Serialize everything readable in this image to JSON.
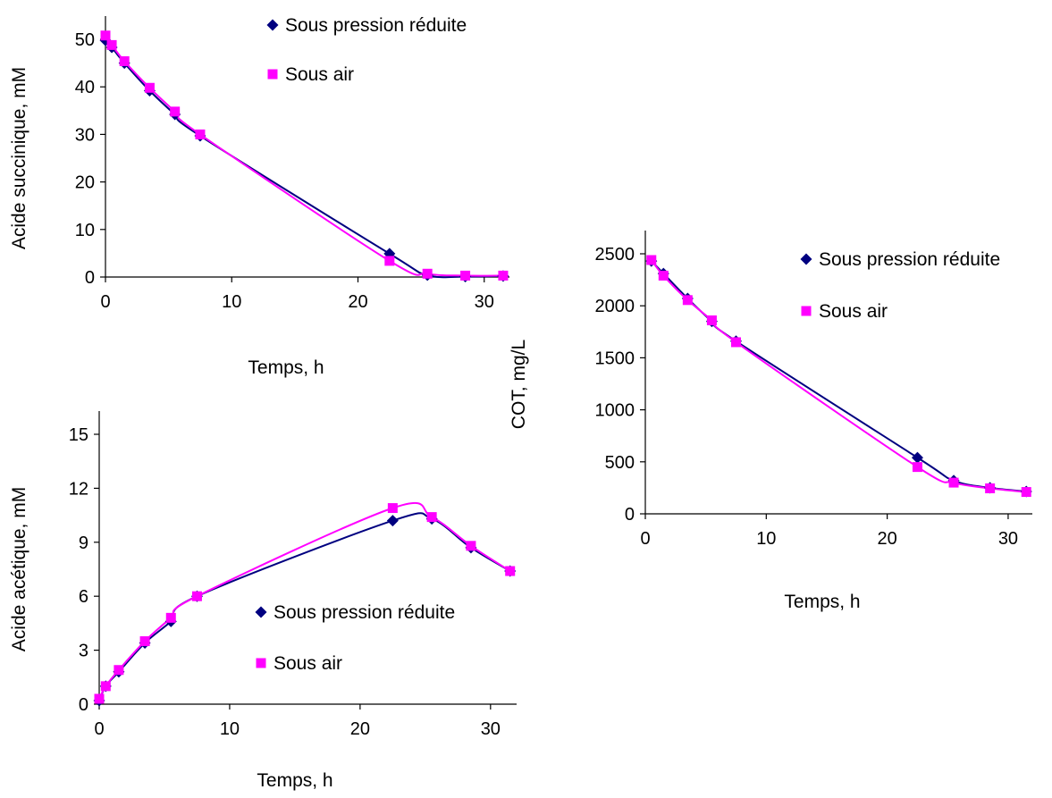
{
  "colors": {
    "series_a": "#000080",
    "series_b": "#FF00FF",
    "axis": "#000000"
  },
  "chart_data": [
    {
      "id": "chart-succinique",
      "type": "scatter",
      "xlabel": "Temps, h",
      "ylabel": "Acide succinique, mM",
      "xlim": [
        0,
        32
      ],
      "ylim": [
        0,
        50
      ],
      "xticks": [
        "0",
        "10",
        "20",
        "30"
      ],
      "yticks": [
        "0",
        "10",
        "20",
        "30",
        "40",
        "50"
      ],
      "legend": "top-right",
      "trendlines": true,
      "series": [
        {
          "name": "Sous pression réduite",
          "marker": "diamond",
          "x": [
            0,
            0.5,
            1.5,
            3.5,
            5.5,
            7.5,
            22.5,
            25.5,
            28.5,
            31.5
          ],
          "y": [
            49.8,
            48.3,
            45,
            39.2,
            34.2,
            29.7,
            4.9,
            0.4,
            0.1,
            0.2
          ]
        },
        {
          "name": "Sous air",
          "marker": "square",
          "x": [
            0,
            0.5,
            1.5,
            3.5,
            5.5,
            7.5,
            22.5,
            25.5,
            28.5,
            31.5
          ],
          "y": [
            50.8,
            48.8,
            45.4,
            39.8,
            34.8,
            30,
            3.4,
            0.7,
            0.3,
            0.3
          ]
        }
      ]
    },
    {
      "id": "chart-acetique",
      "type": "scatter",
      "xlabel": "Temps, h",
      "ylabel": "Acide acétique, mM",
      "xlim": [
        0,
        32
      ],
      "ylim": [
        0,
        15
      ],
      "xticks": [
        "0",
        "10",
        "20",
        "30"
      ],
      "yticks": [
        "0",
        "3",
        "6",
        "9",
        "12",
        "15"
      ],
      "legend": "center-right",
      "trendlines": true,
      "series": [
        {
          "name": "Sous pression réduite",
          "marker": "diamond",
          "x": [
            0,
            0.5,
            1.5,
            3.5,
            5.5,
            7.5,
            22.5,
            25.5,
            28.5,
            31.5
          ],
          "y": [
            0.2,
            1,
            1.8,
            3.4,
            4.6,
            6,
            10.2,
            10.3,
            8.7,
            7.4
          ]
        },
        {
          "name": "Sous air",
          "marker": "square",
          "x": [
            0,
            0.5,
            1.5,
            3.5,
            5.5,
            7.5,
            22.5,
            25.5,
            28.5,
            31.5
          ],
          "y": [
            0.3,
            1,
            1.9,
            3.5,
            4.8,
            6,
            10.9,
            10.4,
            8.8,
            7.4
          ]
        }
      ]
    },
    {
      "id": "chart-cot",
      "type": "scatter",
      "xlabel": "Temps, h",
      "ylabel": "COT, mg/L",
      "xlim": [
        0,
        32
      ],
      "ylim": [
        0,
        2500
      ],
      "xticks": [
        "0",
        "10",
        "20",
        "30"
      ],
      "yticks": [
        "0",
        "500",
        "1000",
        "1500",
        "2000",
        "2500"
      ],
      "legend": "top-right",
      "trendlines": true,
      "series": [
        {
          "name": "Sous pression réduite",
          "marker": "diamond",
          "x": [
            0.5,
            1.5,
            3.5,
            5.5,
            7.5,
            22.5,
            25.5,
            28.5,
            31.5
          ],
          "y": [
            2430,
            2310,
            2070,
            1850,
            1660,
            540,
            320,
            250,
            215
          ]
        },
        {
          "name": "Sous air",
          "marker": "square",
          "x": [
            0.5,
            1.5,
            3.5,
            5.5,
            7.5,
            22.5,
            25.5,
            28.5,
            31.5
          ],
          "y": [
            2440,
            2290,
            2055,
            1860,
            1650,
            450,
            300,
            245,
            210
          ]
        }
      ]
    }
  ]
}
